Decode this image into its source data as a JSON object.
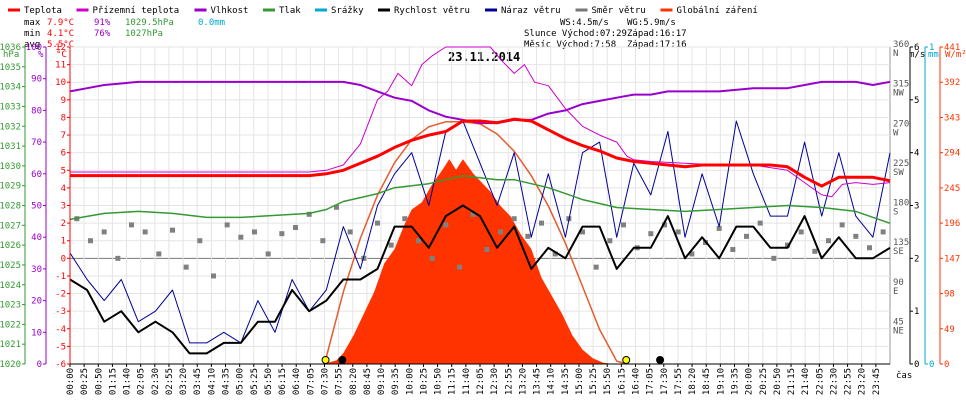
{
  "chart_data": {
    "type": "line",
    "title": "23.11.2014",
    "legend": [
      {
        "name": "Teplota",
        "color": "#ff0000"
      },
      {
        "name": "Přízemní teplota",
        "color": "#cc00cc"
      },
      {
        "name": "Vlhkost",
        "color": "#9900cc"
      },
      {
        "name": "Tlak",
        "color": "#339933"
      },
      {
        "name": "Srážky",
        "color": "#00aacc"
      },
      {
        "name": "Rychlost větru",
        "color": "#000000"
      },
      {
        "name": "Náraz větru",
        "color": "#000099"
      },
      {
        "name": "Směr větru",
        "color": "#777777"
      },
      {
        "name": "Globální záření",
        "color": "#ff3300"
      }
    ],
    "stats": {
      "max_label": "max",
      "max_temp": "7.9°C",
      "max_hum": "91%",
      "max_press": "1029.5hPa",
      "max_rain": "0.0mm",
      "min_label": "min",
      "min_temp": "4.1°C",
      "min_hum": "76%",
      "min_press": "1027hPa",
      "avg_label": "avg",
      "avg_temp": "5.5°C",
      "ws": "WS:4.5m/s",
      "wg": "WG:5.9m/s",
      "sun": "Slunce Východ:07:29",
      "sun_set": "Západ:16:17",
      "moon": "Měsíc Východ:7:58",
      "moon_set": "Západ:17:16"
    },
    "axis_titles": {
      "hpa": "hPa",
      "pct": "%",
      "degc": "°C",
      "ms": "m/s",
      "mm": "mm",
      "wm2": "W/m²",
      "cas": "čas"
    },
    "hpa_ticks": [
      "1036",
      "1035",
      "1034",
      "1033",
      "1032",
      "1031",
      "1030",
      "1029",
      "1028",
      "1027",
      "1026",
      "1025",
      "1024",
      "1023",
      "1022",
      "1021",
      "1020"
    ],
    "pct_ticks": [
      "100",
      "90",
      "80",
      "70",
      "60",
      "50",
      "40",
      "30",
      "20",
      "10",
      "0"
    ],
    "degc_ticks": [
      "12",
      "11",
      "10",
      "9",
      "8",
      "7",
      "6",
      "5",
      "4",
      "3",
      "2",
      "1",
      "0",
      "-1",
      "-2",
      "-3",
      "-4",
      "-5",
      "-6"
    ],
    "dir_ticks": [
      {
        "v": 360,
        "n": "360",
        "c": "N"
      },
      {
        "v": 315,
        "n": "315",
        "c": "NW"
      },
      {
        "v": 270,
        "n": "270",
        "c": "W"
      },
      {
        "v": 225,
        "n": "225",
        "c": "SW"
      },
      {
        "v": 180,
        "n": "180",
        "c": "S"
      },
      {
        "v": 135,
        "n": "135",
        "c": "SE"
      },
      {
        "v": 90,
        "n": "90",
        "c": "E"
      },
      {
        "v": 45,
        "n": "45",
        "c": "NE"
      }
    ],
    "ms_ticks": [
      "6",
      "5",
      "4",
      "3",
      "2",
      "1",
      "0"
    ],
    "mm_ticks": [
      "1",
      "0"
    ],
    "wm2_ticks": [
      "441",
      "392",
      "343",
      "294",
      "245",
      "196",
      "147",
      "98",
      "49",
      "0"
    ],
    "time_labels": [
      "00:00",
      "00:25",
      "00:50",
      "01:15",
      "01:40",
      "02:05",
      "02:30",
      "02:55",
      "03:20",
      "03:45",
      "04:10",
      "04:35",
      "05:00",
      "05:25",
      "05:50",
      "06:15",
      "06:40",
      "07:05",
      "07:30",
      "07:55",
      "08:20",
      "08:45",
      "09:10",
      "09:35",
      "10:00",
      "10:25",
      "10:50",
      "11:15",
      "11:40",
      "12:05",
      "12:30",
      "12:55",
      "13:20",
      "13:45",
      "14:10",
      "14:35",
      "15:00",
      "15:25",
      "15:50",
      "16:15",
      "16:40",
      "17:05",
      "17:30",
      "17:55",
      "18:20",
      "18:45",
      "19:10",
      "19:35",
      "20:00",
      "20:25",
      "20:50",
      "21:15",
      "21:40",
      "22:05",
      "22:30",
      "22:55",
      "23:20",
      "23:45"
    ],
    "ylim_degc": [
      -6,
      12
    ],
    "ylim_pct": [
      0,
      100
    ],
    "ylim_hpa": [
      1020,
      1036
    ],
    "ylim_ms": [
      0,
      6
    ],
    "ylim_wm2": [
      0,
      441
    ],
    "ylim_dir": [
      0,
      360
    ],
    "x_range_hours": [
      0,
      24
    ],
    "sunrise_h": 7.48,
    "sunset_h": 16.28,
    "moonrise_h": 7.97,
    "moonset_h": 17.27,
    "temperature_c": [
      [
        0,
        4.7
      ],
      [
        1,
        4.7
      ],
      [
        2,
        4.7
      ],
      [
        3,
        4.7
      ],
      [
        4,
        4.7
      ],
      [
        5,
        4.7
      ],
      [
        6,
        4.7
      ],
      [
        7,
        4.7
      ],
      [
        7.5,
        4.8
      ],
      [
        8,
        5.0
      ],
      [
        8.5,
        5.4
      ],
      [
        9,
        5.8
      ],
      [
        9.5,
        6.3
      ],
      [
        10,
        6.7
      ],
      [
        10.5,
        7.0
      ],
      [
        11,
        7.2
      ],
      [
        11.5,
        7.8
      ],
      [
        12,
        7.8
      ],
      [
        12.5,
        7.7
      ],
      [
        13,
        7.9
      ],
      [
        13.5,
        7.8
      ],
      [
        14,
        7.3
      ],
      [
        14.5,
        6.8
      ],
      [
        15,
        6.4
      ],
      [
        15.5,
        6.1
      ],
      [
        16,
        5.7
      ],
      [
        16.5,
        5.5
      ],
      [
        17,
        5.4
      ],
      [
        17.5,
        5.3
      ],
      [
        18,
        5.2
      ],
      [
        18.5,
        5.3
      ],
      [
        19,
        5.3
      ],
      [
        19.5,
        5.3
      ],
      [
        20,
        5.3
      ],
      [
        20.5,
        5.3
      ],
      [
        21,
        5.2
      ],
      [
        21.5,
        4.6
      ],
      [
        22,
        4.1
      ],
      [
        22.5,
        4.6
      ],
      [
        23,
        4.6
      ],
      [
        23.5,
        4.6
      ],
      [
        24,
        4.4
      ]
    ],
    "ground_temp_c": [
      [
        0,
        4.9
      ],
      [
        3,
        4.9
      ],
      [
        6,
        4.9
      ],
      [
        7,
        4.9
      ],
      [
        7.5,
        5.0
      ],
      [
        8,
        5.3
      ],
      [
        8.5,
        6.5
      ],
      [
        9,
        9.0
      ],
      [
        9.3,
        9.5
      ],
      [
        9.6,
        10.5
      ],
      [
        10,
        9.8
      ],
      [
        10.3,
        11.0
      ],
      [
        10.6,
        11.5
      ],
      [
        11,
        12.0
      ],
      [
        11.5,
        12.0
      ],
      [
        12,
        12.0
      ],
      [
        12.3,
        12.0
      ],
      [
        12.6,
        11.3
      ],
      [
        13,
        10.5
      ],
      [
        13.3,
        11.0
      ],
      [
        13.6,
        10.0
      ],
      [
        14,
        9.8
      ],
      [
        14.5,
        8.5
      ],
      [
        15,
        7.5
      ],
      [
        15.5,
        7.0
      ],
      [
        16,
        6.6
      ],
      [
        16.3,
        5.8
      ],
      [
        16.5,
        5.6
      ],
      [
        17,
        5.5
      ],
      [
        18,
        5.4
      ],
      [
        19,
        5.3
      ],
      [
        20,
        5.3
      ],
      [
        21,
        5.0
      ],
      [
        21.5,
        4.3
      ],
      [
        22,
        3.6
      ],
      [
        22.3,
        3.5
      ],
      [
        22.6,
        4.2
      ],
      [
        23,
        4.3
      ],
      [
        23.5,
        4.2
      ],
      [
        24,
        4.3
      ]
    ],
    "humidity_pct": [
      [
        0,
        86
      ],
      [
        0.5,
        87
      ],
      [
        1,
        88
      ],
      [
        2,
        89
      ],
      [
        3,
        89
      ],
      [
        4,
        89
      ],
      [
        5,
        89
      ],
      [
        6,
        89
      ],
      [
        7,
        89
      ],
      [
        7.5,
        89
      ],
      [
        8,
        89
      ],
      [
        8.5,
        88
      ],
      [
        9,
        86
      ],
      [
        9.5,
        84
      ],
      [
        10,
        83
      ],
      [
        10.5,
        80
      ],
      [
        11,
        78
      ],
      [
        11.5,
        77
      ],
      [
        12,
        76
      ],
      [
        12.5,
        76
      ],
      [
        13,
        77
      ],
      [
        13.5,
        77
      ],
      [
        14,
        79
      ],
      [
        14.5,
        80
      ],
      [
        15,
        82
      ],
      [
        15.5,
        83
      ],
      [
        16,
        84
      ],
      [
        16.5,
        85
      ],
      [
        17,
        85
      ],
      [
        17.5,
        86
      ],
      [
        18,
        86
      ],
      [
        19,
        86
      ],
      [
        20,
        87
      ],
      [
        21,
        87
      ],
      [
        21.5,
        88
      ],
      [
        22,
        89
      ],
      [
        22.5,
        89
      ],
      [
        23,
        89
      ],
      [
        23.5,
        88
      ],
      [
        24,
        89
      ]
    ],
    "pressure_hpa": [
      [
        0,
        1027.3
      ],
      [
        1,
        1027.6
      ],
      [
        2,
        1027.7
      ],
      [
        3,
        1027.6
      ],
      [
        4,
        1027.4
      ],
      [
        5,
        1027.4
      ],
      [
        6,
        1027.5
      ],
      [
        7,
        1027.6
      ],
      [
        7.5,
        1027.8
      ],
      [
        8,
        1028.2
      ],
      [
        8.5,
        1028.4
      ],
      [
        9,
        1028.6
      ],
      [
        9.5,
        1028.9
      ],
      [
        10,
        1029.0
      ],
      [
        10.5,
        1029.1
      ],
      [
        11,
        1029.3
      ],
      [
        11.5,
        1029.5
      ],
      [
        12,
        1029.4
      ],
      [
        12.5,
        1029.3
      ],
      [
        13,
        1029.3
      ],
      [
        13.5,
        1029.1
      ],
      [
        14,
        1028.9
      ],
      [
        14.5,
        1028.6
      ],
      [
        15,
        1028.3
      ],
      [
        15.5,
        1028.1
      ],
      [
        16,
        1027.9
      ],
      [
        17,
        1027.8
      ],
      [
        18,
        1027.7
      ],
      [
        19,
        1027.8
      ],
      [
        20,
        1027.9
      ],
      [
        21,
        1028.0
      ],
      [
        22,
        1027.9
      ],
      [
        23,
        1027.7
      ],
      [
        24,
        1027.1
      ]
    ],
    "wind_speed_ms": [
      [
        0,
        1.6
      ],
      [
        0.5,
        1.4
      ],
      [
        1,
        0.8
      ],
      [
        1.5,
        1.0
      ],
      [
        2,
        0.6
      ],
      [
        2.5,
        0.8
      ],
      [
        3,
        0.6
      ],
      [
        3.5,
        0.2
      ],
      [
        4,
        0.2
      ],
      [
        4.5,
        0.4
      ],
      [
        5,
        0.4
      ],
      [
        5.5,
        0.8
      ],
      [
        6,
        0.8
      ],
      [
        6.5,
        1.4
      ],
      [
        7,
        1.0
      ],
      [
        7.5,
        1.2
      ],
      [
        8,
        1.6
      ],
      [
        8.5,
        1.6
      ],
      [
        9,
        1.8
      ],
      [
        9.5,
        2.6
      ],
      [
        10,
        2.6
      ],
      [
        10.5,
        2.2
      ],
      [
        11,
        2.8
      ],
      [
        11.5,
        3.0
      ],
      [
        12,
        2.8
      ],
      [
        12.5,
        2.2
      ],
      [
        13,
        2.6
      ],
      [
        13.5,
        1.8
      ],
      [
        14,
        2.2
      ],
      [
        14.5,
        2.0
      ],
      [
        15,
        2.6
      ],
      [
        15.5,
        2.6
      ],
      [
        16,
        1.8
      ],
      [
        16.5,
        2.2
      ],
      [
        17,
        2.2
      ],
      [
        17.5,
        2.8
      ],
      [
        18,
        2.0
      ],
      [
        18.5,
        2.4
      ],
      [
        19,
        2.0
      ],
      [
        19.5,
        2.6
      ],
      [
        20,
        2.6
      ],
      [
        20.5,
        2.2
      ],
      [
        21,
        2.2
      ],
      [
        21.5,
        2.8
      ],
      [
        22,
        2.0
      ],
      [
        22.5,
        2.4
      ],
      [
        23,
        2.0
      ],
      [
        23.5,
        2.0
      ],
      [
        24,
        2.2
      ]
    ],
    "wind_gust_ms": [
      [
        0,
        2.1
      ],
      [
        0.5,
        1.6
      ],
      [
        1,
        1.2
      ],
      [
        1.5,
        1.6
      ],
      [
        2,
        0.8
      ],
      [
        2.5,
        1.0
      ],
      [
        3,
        1.4
      ],
      [
        3.5,
        0.4
      ],
      [
        4,
        0.4
      ],
      [
        4.5,
        0.6
      ],
      [
        5,
        0.4
      ],
      [
        5.5,
        1.2
      ],
      [
        6,
        0.6
      ],
      [
        6.5,
        1.6
      ],
      [
        7,
        1.0
      ],
      [
        7.5,
        1.4
      ],
      [
        8,
        2.6
      ],
      [
        8.5,
        1.8
      ],
      [
        9,
        3.0
      ],
      [
        9.5,
        3.6
      ],
      [
        10,
        4.0
      ],
      [
        10.5,
        3.0
      ],
      [
        11,
        4.4
      ],
      [
        11.5,
        4.6
      ],
      [
        12,
        3.8
      ],
      [
        12.5,
        3.0
      ],
      [
        13,
        4.0
      ],
      [
        13.5,
        2.4
      ],
      [
        14,
        3.6
      ],
      [
        14.5,
        2.4
      ],
      [
        15,
        4.0
      ],
      [
        15.5,
        4.2
      ],
      [
        16,
        2.4
      ],
      [
        16.5,
        3.8
      ],
      [
        17,
        3.2
      ],
      [
        17.5,
        4.4
      ],
      [
        18,
        2.4
      ],
      [
        18.5,
        3.6
      ],
      [
        19,
        2.6
      ],
      [
        19.5,
        4.6
      ],
      [
        20,
        3.6
      ],
      [
        20.5,
        2.8
      ],
      [
        21,
        2.8
      ],
      [
        21.5,
        4.2
      ],
      [
        22,
        2.8
      ],
      [
        22.5,
        4.0
      ],
      [
        23,
        2.8
      ],
      [
        23.5,
        2.4
      ],
      [
        24,
        4.0
      ]
    ],
    "wind_dir_deg": [
      [
        0.2,
        165
      ],
      [
        0.6,
        140
      ],
      [
        1.0,
        150
      ],
      [
        1.4,
        120
      ],
      [
        1.8,
        158
      ],
      [
        2.2,
        150
      ],
      [
        2.6,
        125
      ],
      [
        3.0,
        152
      ],
      [
        3.4,
        110
      ],
      [
        3.8,
        140
      ],
      [
        4.2,
        100
      ],
      [
        4.6,
        158
      ],
      [
        5.0,
        144
      ],
      [
        5.4,
        150
      ],
      [
        5.8,
        125
      ],
      [
        6.2,
        148
      ],
      [
        6.6,
        155
      ],
      [
        7.0,
        170
      ],
      [
        7.4,
        140
      ],
      [
        7.8,
        178
      ],
      [
        8.2,
        150
      ],
      [
        8.6,
        120
      ],
      [
        9.0,
        160
      ],
      [
        9.4,
        135
      ],
      [
        9.8,
        165
      ],
      [
        10.2,
        140
      ],
      [
        10.6,
        120
      ],
      [
        11.0,
        158
      ],
      [
        11.4,
        110
      ],
      [
        11.8,
        170
      ],
      [
        12.2,
        130
      ],
      [
        12.6,
        150
      ],
      [
        13.0,
        165
      ],
      [
        13.4,
        145
      ],
      [
        13.8,
        160
      ],
      [
        14.2,
        125
      ],
      [
        14.6,
        165
      ],
      [
        15.0,
        150
      ],
      [
        15.4,
        110
      ],
      [
        15.8,
        140
      ],
      [
        16.2,
        158
      ],
      [
        16.6,
        132
      ],
      [
        17.0,
        148
      ],
      [
        17.4,
        158
      ],
      [
        17.8,
        150
      ],
      [
        18.2,
        125
      ],
      [
        18.6,
        138
      ],
      [
        19.0,
        154
      ],
      [
        19.4,
        130
      ],
      [
        19.8,
        145
      ],
      [
        20.2,
        160
      ],
      [
        20.6,
        120
      ],
      [
        21.0,
        135
      ],
      [
        21.4,
        150
      ],
      [
        21.8,
        128
      ],
      [
        22.2,
        140
      ],
      [
        22.6,
        158
      ],
      [
        23.0,
        145
      ],
      [
        23.4,
        132
      ],
      [
        23.8,
        150
      ]
    ],
    "solar_wm2": [
      [
        7.4,
        0
      ],
      [
        7.8,
        5
      ],
      [
        8.0,
        15
      ],
      [
        8.3,
        40
      ],
      [
        8.6,
        70
      ],
      [
        8.9,
        100
      ],
      [
        9.2,
        140
      ],
      [
        9.5,
        160
      ],
      [
        9.8,
        195
      ],
      [
        10.0,
        215
      ],
      [
        10.3,
        225
      ],
      [
        10.6,
        250
      ],
      [
        10.9,
        270
      ],
      [
        11.1,
        285
      ],
      [
        11.3,
        270
      ],
      [
        11.5,
        285
      ],
      [
        11.8,
        265
      ],
      [
        12.0,
        255
      ],
      [
        12.3,
        240
      ],
      [
        12.6,
        220
      ],
      [
        12.9,
        205
      ],
      [
        13.2,
        180
      ],
      [
        13.5,
        160
      ],
      [
        13.8,
        120
      ],
      [
        14.1,
        95
      ],
      [
        14.4,
        70
      ],
      [
        14.7,
        40
      ],
      [
        15.0,
        20
      ],
      [
        15.3,
        8
      ],
      [
        15.6,
        2
      ],
      [
        15.9,
        0
      ]
    ],
    "solar_theoretical_wm2": [
      [
        7.45,
        0
      ],
      [
        8,
        100
      ],
      [
        8.5,
        175
      ],
      [
        9,
        235
      ],
      [
        9.5,
        280
      ],
      [
        10,
        312
      ],
      [
        10.5,
        330
      ],
      [
        11,
        337
      ],
      [
        11.5,
        337
      ],
      [
        12,
        334
      ],
      [
        12.5,
        320
      ],
      [
        13,
        296
      ],
      [
        13.5,
        262
      ],
      [
        14,
        220
      ],
      [
        14.5,
        168
      ],
      [
        15,
        108
      ],
      [
        15.5,
        48
      ],
      [
        16,
        4
      ],
      [
        16.3,
        0
      ]
    ]
  }
}
